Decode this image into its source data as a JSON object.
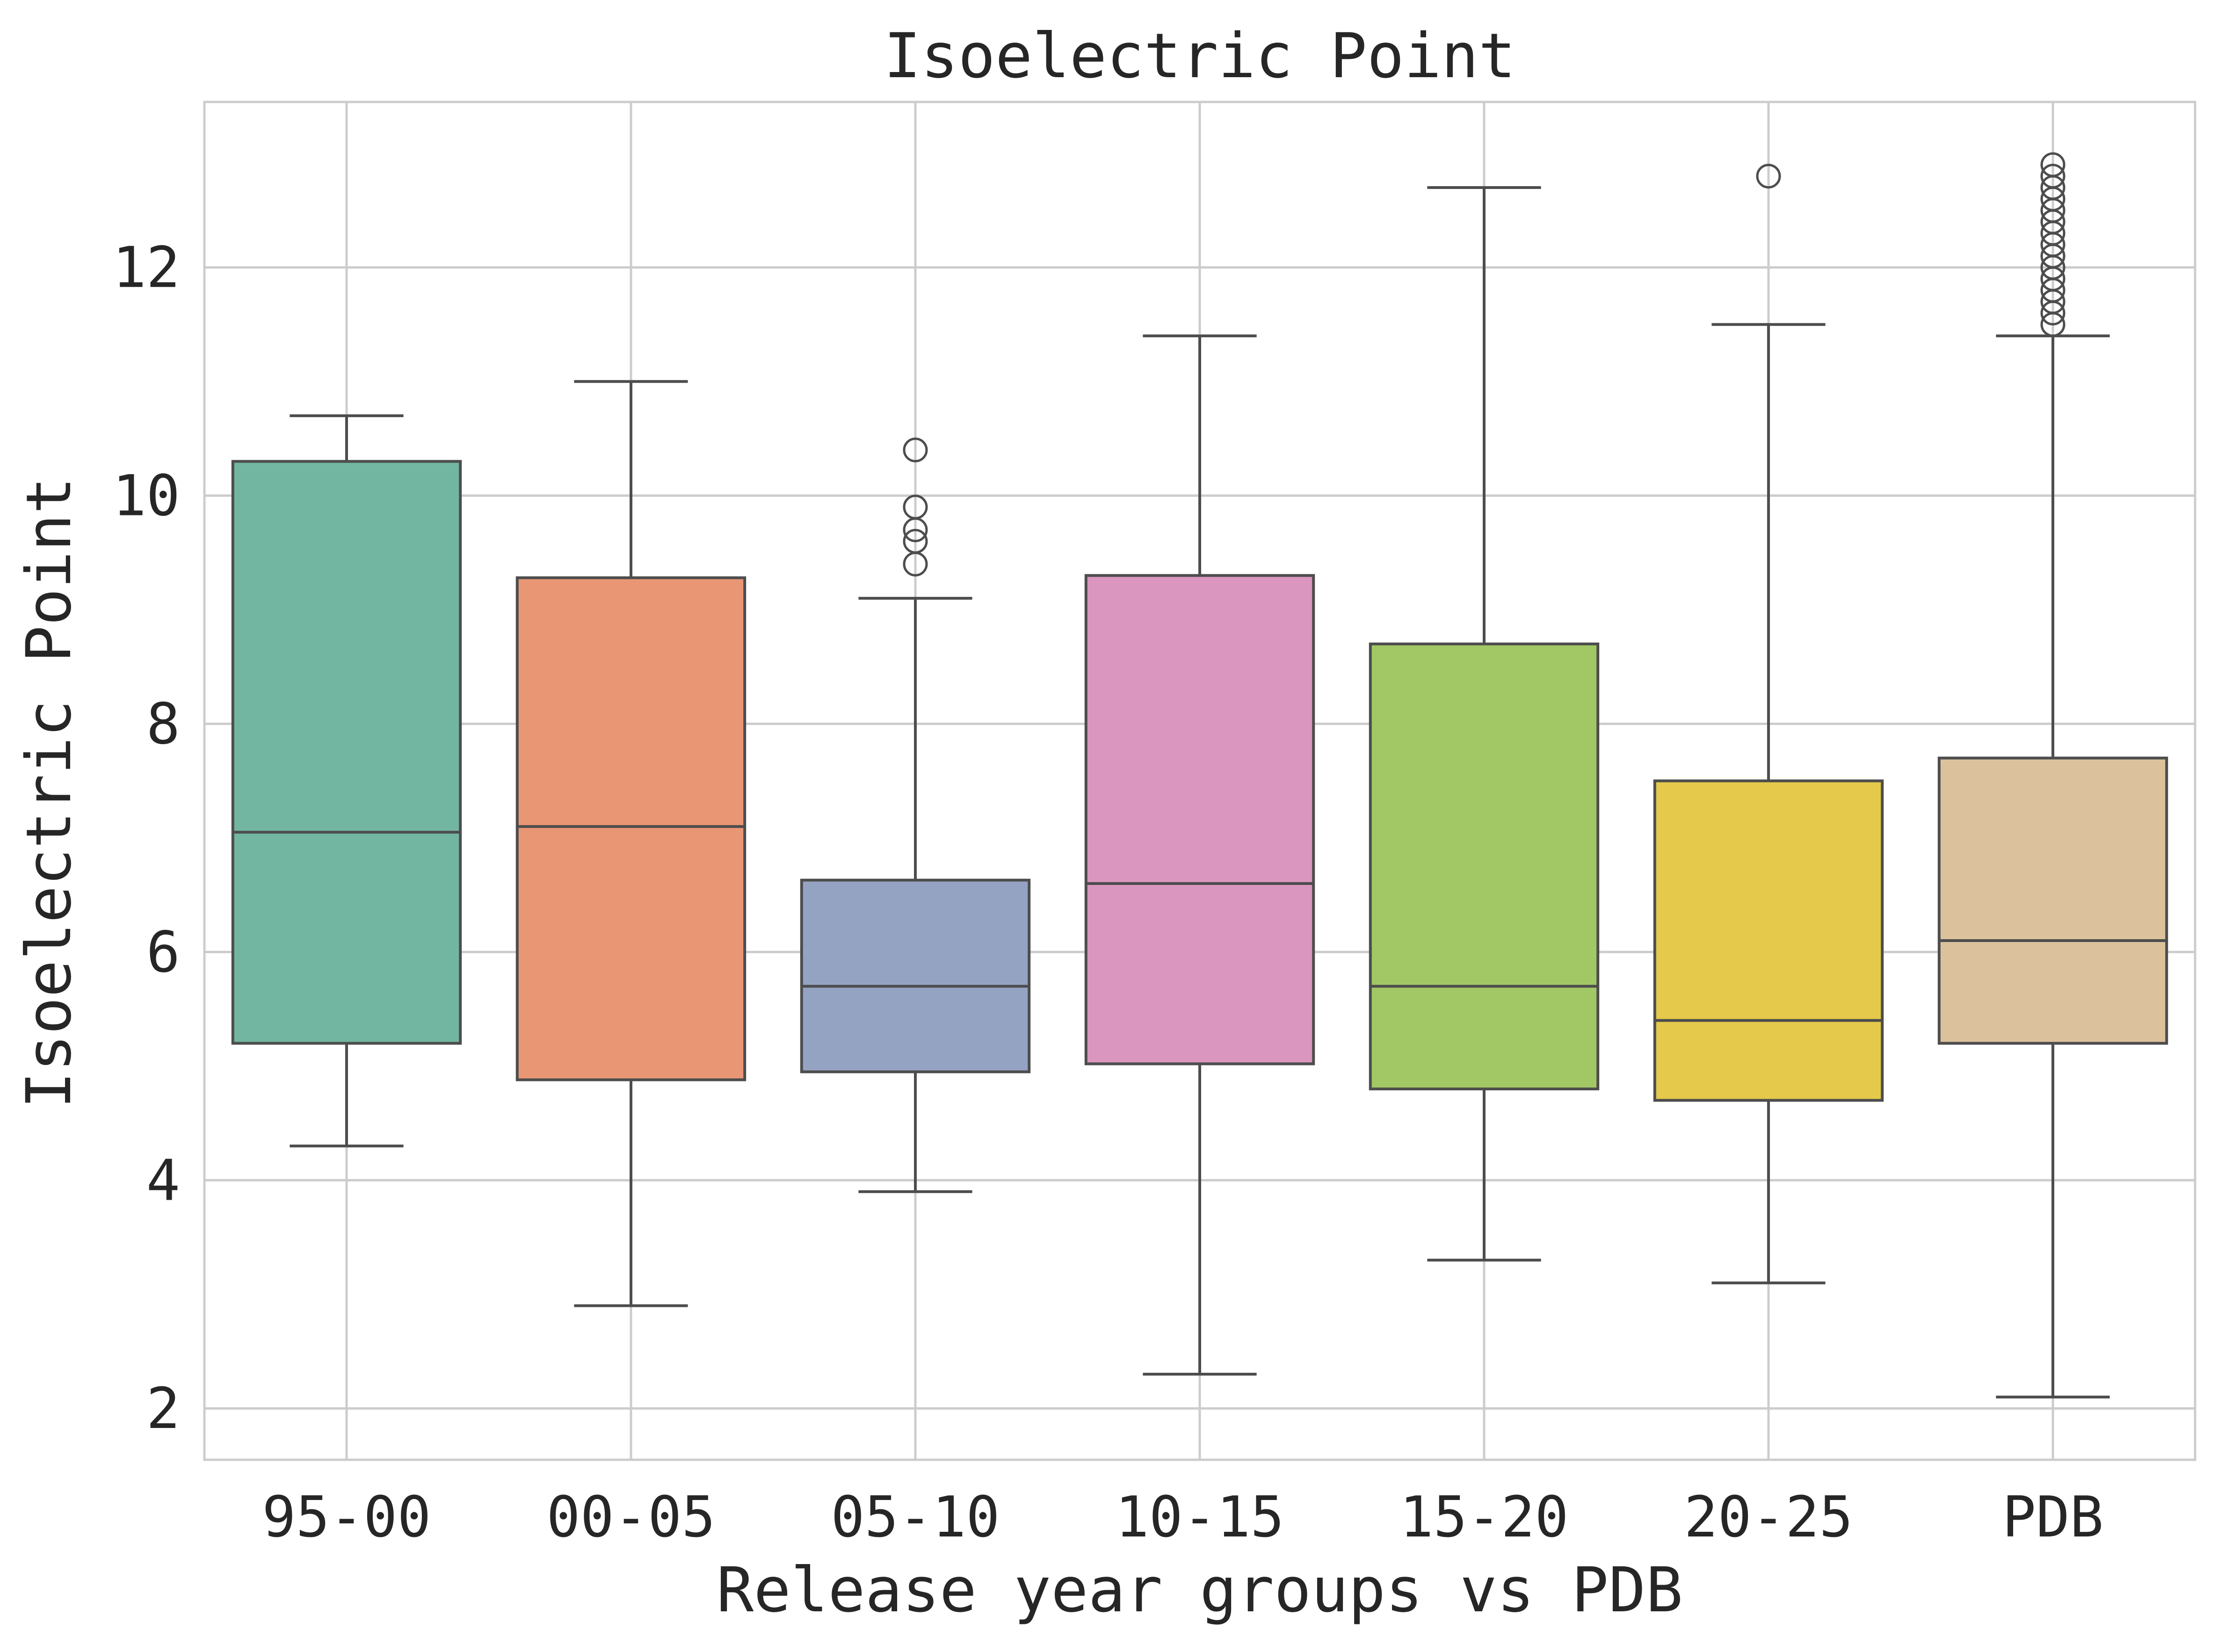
{
  "chart_data": {
    "type": "box",
    "title": "Isoelectric Point",
    "xlabel": "Release year groups vs PDB",
    "ylabel": "Isoelectric Point",
    "ylim": [
      1.55,
      13.45
    ],
    "yticks": [
      2,
      4,
      6,
      8,
      10,
      12
    ],
    "grid": true,
    "categories": [
      "95-00",
      "00-05",
      "05-10",
      "10-15",
      "15-20",
      "20-25",
      "PDB"
    ],
    "colors": [
      "#72b6a1",
      "#e99675",
      "#95a3c3",
      "#db96c0",
      "#a2c865",
      "#e5c94a",
      "#dbc29c"
    ],
    "boxes": [
      {
        "whislo": 4.3,
        "q1": 5.2,
        "med": 7.05,
        "q3": 10.3,
        "whishi": 10.7,
        "fliers": []
      },
      {
        "whislo": 2.9,
        "q1": 4.88,
        "med": 7.1,
        "q3": 9.28,
        "whishi": 11.0,
        "fliers": []
      },
      {
        "whislo": 3.9,
        "q1": 4.95,
        "med": 5.7,
        "q3": 6.63,
        "whishi": 9.1,
        "fliers": [
          9.4,
          9.6,
          9.7,
          9.9,
          10.4
        ]
      },
      {
        "whislo": 2.3,
        "q1": 5.02,
        "med": 6.6,
        "q3": 9.3,
        "whishi": 11.4,
        "fliers": []
      },
      {
        "whislo": 3.3,
        "q1": 4.8,
        "med": 5.7,
        "q3": 8.7,
        "whishi": 12.7,
        "fliers": []
      },
      {
        "whislo": 3.1,
        "q1": 4.7,
        "med": 5.4,
        "q3": 7.5,
        "whishi": 11.5,
        "fliers": [
          12.8
        ]
      },
      {
        "whislo": 2.1,
        "q1": 5.2,
        "med": 6.1,
        "q3": 7.7,
        "whishi": 11.4,
        "fliers": [
          11.5,
          11.6,
          11.7,
          11.8,
          11.9,
          12.0,
          12.1,
          12.2,
          12.3,
          12.4,
          12.5,
          12.6,
          12.7,
          12.8,
          12.9
        ]
      }
    ]
  }
}
